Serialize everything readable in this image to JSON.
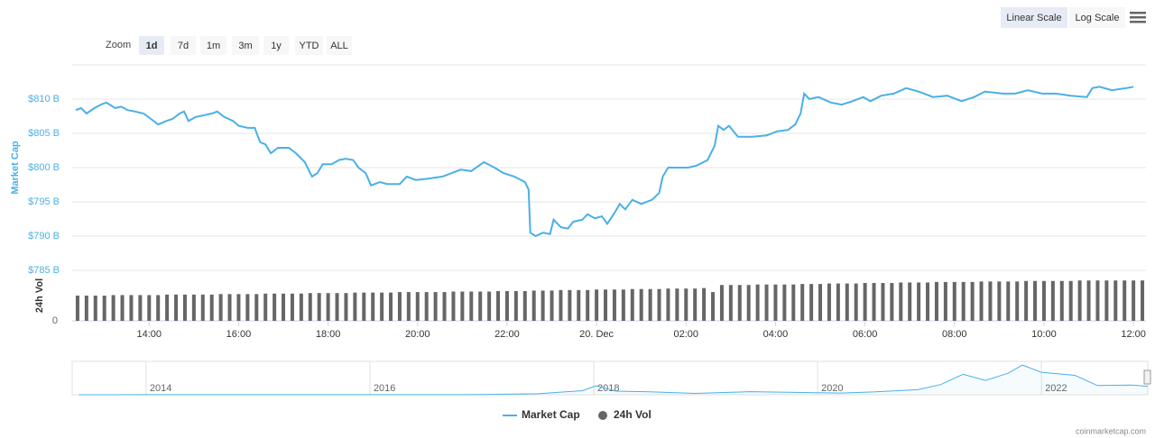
{
  "controls": {
    "zoom_label": "Zoom",
    "zoom_options": [
      "1d",
      "7d",
      "1m",
      "3m",
      "1y",
      "YTD",
      "ALL"
    ],
    "scale_options": [
      "Linear Scale",
      "Log Scale"
    ]
  },
  "credit": "coinmarketcap.com",
  "chart_data": [
    {
      "type": "line",
      "y_label": "Market Cap",
      "x": [
        12.36,
        12.48,
        12.6,
        12.78,
        12.92,
        13.04,
        13.12,
        13.24,
        13.38,
        13.52,
        13.68,
        13.88,
        14.04,
        14.2,
        14.38,
        14.52,
        14.68,
        14.78,
        14.88,
        15.04,
        15.2,
        15.4,
        15.52,
        15.68,
        15.88,
        16.0,
        16.2,
        16.36,
        16.48,
        16.6,
        16.72,
        16.88,
        17.12,
        17.28,
        17.48,
        17.64,
        17.76,
        17.88,
        18.08,
        18.24,
        18.4,
        18.56,
        18.68,
        18.84,
        18.96,
        19.16,
        19.32,
        19.6,
        19.76,
        19.96,
        20.24,
        20.56,
        20.76,
        20.96,
        21.2,
        21.48,
        21.72,
        21.92,
        22.16,
        22.4,
        22.48,
        22.52,
        22.64,
        22.8,
        22.96,
        23.04,
        23.2,
        23.36,
        23.48,
        23.68,
        23.8,
        23.96,
        24.12,
        24.24,
        24.4,
        24.52,
        24.64,
        24.8,
        25.0,
        25.24,
        25.4,
        25.48,
        25.6,
        25.8,
        26.04,
        26.24,
        26.48,
        26.64,
        26.72,
        26.84,
        26.96,
        27.16,
        27.48,
        27.8,
        28.04,
        28.28,
        28.44,
        28.56,
        28.64,
        28.76,
        28.96,
        29.24,
        29.48,
        29.72,
        29.96,
        30.12,
        30.36,
        30.64,
        30.92,
        31.2,
        31.52,
        31.84,
        32.16,
        32.44,
        32.68,
        33.08,
        33.36,
        33.64,
        33.96,
        34.28,
        34.6,
        34.96,
        35.08,
        35.24,
        35.52,
        35.84,
        36.0
      ],
      "series": [
        {
          "name": "Market Cap",
          "color": "#4ab0e6",
          "values": [
            808.4,
            808.7,
            807.9,
            808.7,
            809.2,
            809.5,
            809.2,
            808.7,
            808.9,
            808.4,
            808.2,
            807.9,
            807.1,
            806.3,
            806.8,
            807.1,
            807.9,
            808.2,
            806.8,
            807.4,
            807.6,
            807.9,
            808.2,
            807.4,
            806.8,
            806.1,
            805.8,
            805.8,
            803.7,
            803.4,
            802.1,
            802.9,
            802.9,
            802.1,
            800.8,
            798.7,
            799.2,
            800.5,
            800.5,
            801.1,
            801.3,
            801.1,
            800.0,
            799.2,
            797.4,
            797.9,
            797.6,
            797.6,
            798.7,
            798.2,
            798.4,
            798.7,
            799.2,
            799.7,
            799.5,
            800.8,
            800.0,
            799.2,
            798.7,
            797.9,
            796.8,
            790.5,
            790.0,
            790.5,
            790.3,
            792.4,
            791.3,
            791.1,
            792.1,
            792.4,
            793.2,
            792.6,
            792.9,
            791.8,
            793.4,
            794.7,
            793.9,
            795.3,
            794.7,
            795.3,
            796.3,
            798.7,
            800.0,
            800.0,
            800.0,
            800.3,
            801.1,
            803.2,
            806.1,
            805.5,
            806.1,
            804.5,
            804.5,
            804.7,
            805.3,
            805.5,
            806.3,
            807.9,
            810.8,
            810.0,
            810.3,
            809.5,
            809.2,
            809.7,
            810.3,
            809.7,
            810.5,
            810.8,
            811.6,
            811.1,
            810.3,
            810.5,
            809.7,
            810.3,
            811.1,
            810.8,
            810.8,
            811.3,
            810.8,
            810.8,
            810.5,
            810.3,
            811.6,
            811.8,
            811.3,
            811.6,
            811.8
          ]
        }
      ],
      "xlim": [
        12.28,
        36.28
      ],
      "xticks": [
        {
          "value": 14,
          "label": "14:00"
        },
        {
          "value": 16,
          "label": "16:00"
        },
        {
          "value": 18,
          "label": "18:00"
        },
        {
          "value": 20,
          "label": "20:00"
        },
        {
          "value": 22,
          "label": "22:00"
        },
        {
          "value": 24,
          "label": "20. Dec"
        },
        {
          "value": 26,
          "label": "02:00"
        },
        {
          "value": 28,
          "label": "04:00"
        },
        {
          "value": 30,
          "label": "06:00"
        },
        {
          "value": 32,
          "label": "08:00"
        },
        {
          "value": 34,
          "label": "10:00"
        },
        {
          "value": 36,
          "label": "12:00"
        }
      ],
      "ylim": [
        785,
        815
      ],
      "yticks": [
        {
          "value": 785,
          "label": "$785 B"
        },
        {
          "value": 790,
          "label": "$790 B"
        },
        {
          "value": 795,
          "label": "$795 B"
        },
        {
          "value": 800,
          "label": "$800 B"
        },
        {
          "value": 805,
          "label": "$805 B"
        },
        {
          "value": 810,
          "label": "$810 B"
        }
      ],
      "grid": true
    },
    {
      "type": "bar",
      "y_label": "24h Vol",
      "x": [
        12.4,
        12.6,
        12.8,
        13,
        13.2,
        13.4,
        13.6,
        13.8,
        14,
        14.2,
        14.4,
        14.6,
        14.8,
        15,
        15.2,
        15.4,
        15.6,
        15.8,
        16,
        16.2,
        16.4,
        16.6,
        16.8,
        17,
        17.2,
        17.4,
        17.6,
        17.8,
        18,
        18.2,
        18.4,
        18.6,
        18.8,
        19,
        19.2,
        19.4,
        19.6,
        19.8,
        20,
        20.2,
        20.4,
        20.6,
        20.8,
        21,
        21.2,
        21.4,
        21.6,
        21.8,
        22,
        22.2,
        22.4,
        22.6,
        22.8,
        23,
        23.2,
        23.4,
        23.6,
        23.8,
        24,
        24.2,
        24.4,
        24.6,
        24.8,
        25,
        25.2,
        25.4,
        25.6,
        25.8,
        26,
        26.2,
        26.4,
        26.6,
        26.8,
        27,
        27.2,
        27.4,
        27.6,
        27.8,
        28,
        28.2,
        28.4,
        28.6,
        28.8,
        29,
        29.2,
        29.4,
        29.6,
        29.8,
        30,
        30.2,
        30.4,
        30.6,
        30.8,
        31,
        31.2,
        31.4,
        31.6,
        31.8,
        32,
        32.2,
        32.4,
        32.6,
        32.8,
        33,
        33.2,
        33.4,
        33.6,
        33.8,
        34,
        34.2,
        34.4,
        34.6,
        34.8,
        35,
        35.2,
        35.4,
        35.6,
        35.8,
        36,
        36.2
      ],
      "series": [
        {
          "name": "24h Vol",
          "color": "#666666",
          "values": [
            50,
            50,
            50,
            50,
            51,
            51,
            51,
            51,
            51,
            51,
            52,
            52,
            52,
            52,
            52,
            52,
            53,
            53,
            53,
            53,
            53,
            54,
            54,
            54,
            54,
            54,
            55,
            55,
            55,
            55,
            55,
            56,
            56,
            56,
            56,
            56,
            57,
            57,
            57,
            57,
            57,
            57,
            58,
            58,
            58,
            58,
            58,
            59,
            59,
            59,
            59,
            60,
            60,
            60,
            61,
            61,
            61,
            61,
            62,
            62,
            62,
            62,
            63,
            63,
            63,
            63,
            64,
            64,
            64,
            64,
            65,
            57,
            71,
            71,
            71,
            71,
            72,
            72,
            72,
            72,
            72,
            73,
            73,
            73,
            74,
            74,
            74,
            74,
            75,
            75,
            75,
            75,
            76,
            76,
            76,
            76,
            77,
            77,
            77,
            77,
            77,
            78,
            78,
            78,
            78,
            78,
            79,
            79,
            79,
            79,
            79,
            79,
            80,
            80,
            80,
            80,
            80,
            80,
            80,
            80
          ]
        }
      ],
      "ylim": [
        0,
        100
      ],
      "yticks": [
        0
      ]
    },
    {
      "type": "area",
      "x": [
        2013.4,
        2014,
        2015,
        2016,
        2017,
        2017.5,
        2017.9,
        2018.02,
        2018.2,
        2018.5,
        2018.9,
        2019.4,
        2019.8,
        2020.2,
        2020.5,
        2020.9,
        2021.1,
        2021.3,
        2021.5,
        2021.7,
        2021.83,
        2022.0,
        2022.3,
        2022.5,
        2022.8,
        2022.95
      ],
      "values": [
        1,
        10,
        5,
        7,
        20,
        100,
        400,
        880,
        350,
        280,
        130,
        300,
        230,
        170,
        270,
        500,
        1000,
        2000,
        1400,
        2100,
        2900,
        2200,
        1900,
        900,
        950,
        830
      ],
      "color": "#4ab0e6",
      "xlim": [
        2013.34,
        2022.95
      ],
      "xticks": [
        2014,
        2016,
        2018,
        2020,
        2022
      ],
      "ylim": [
        0,
        3000
      ]
    }
  ]
}
